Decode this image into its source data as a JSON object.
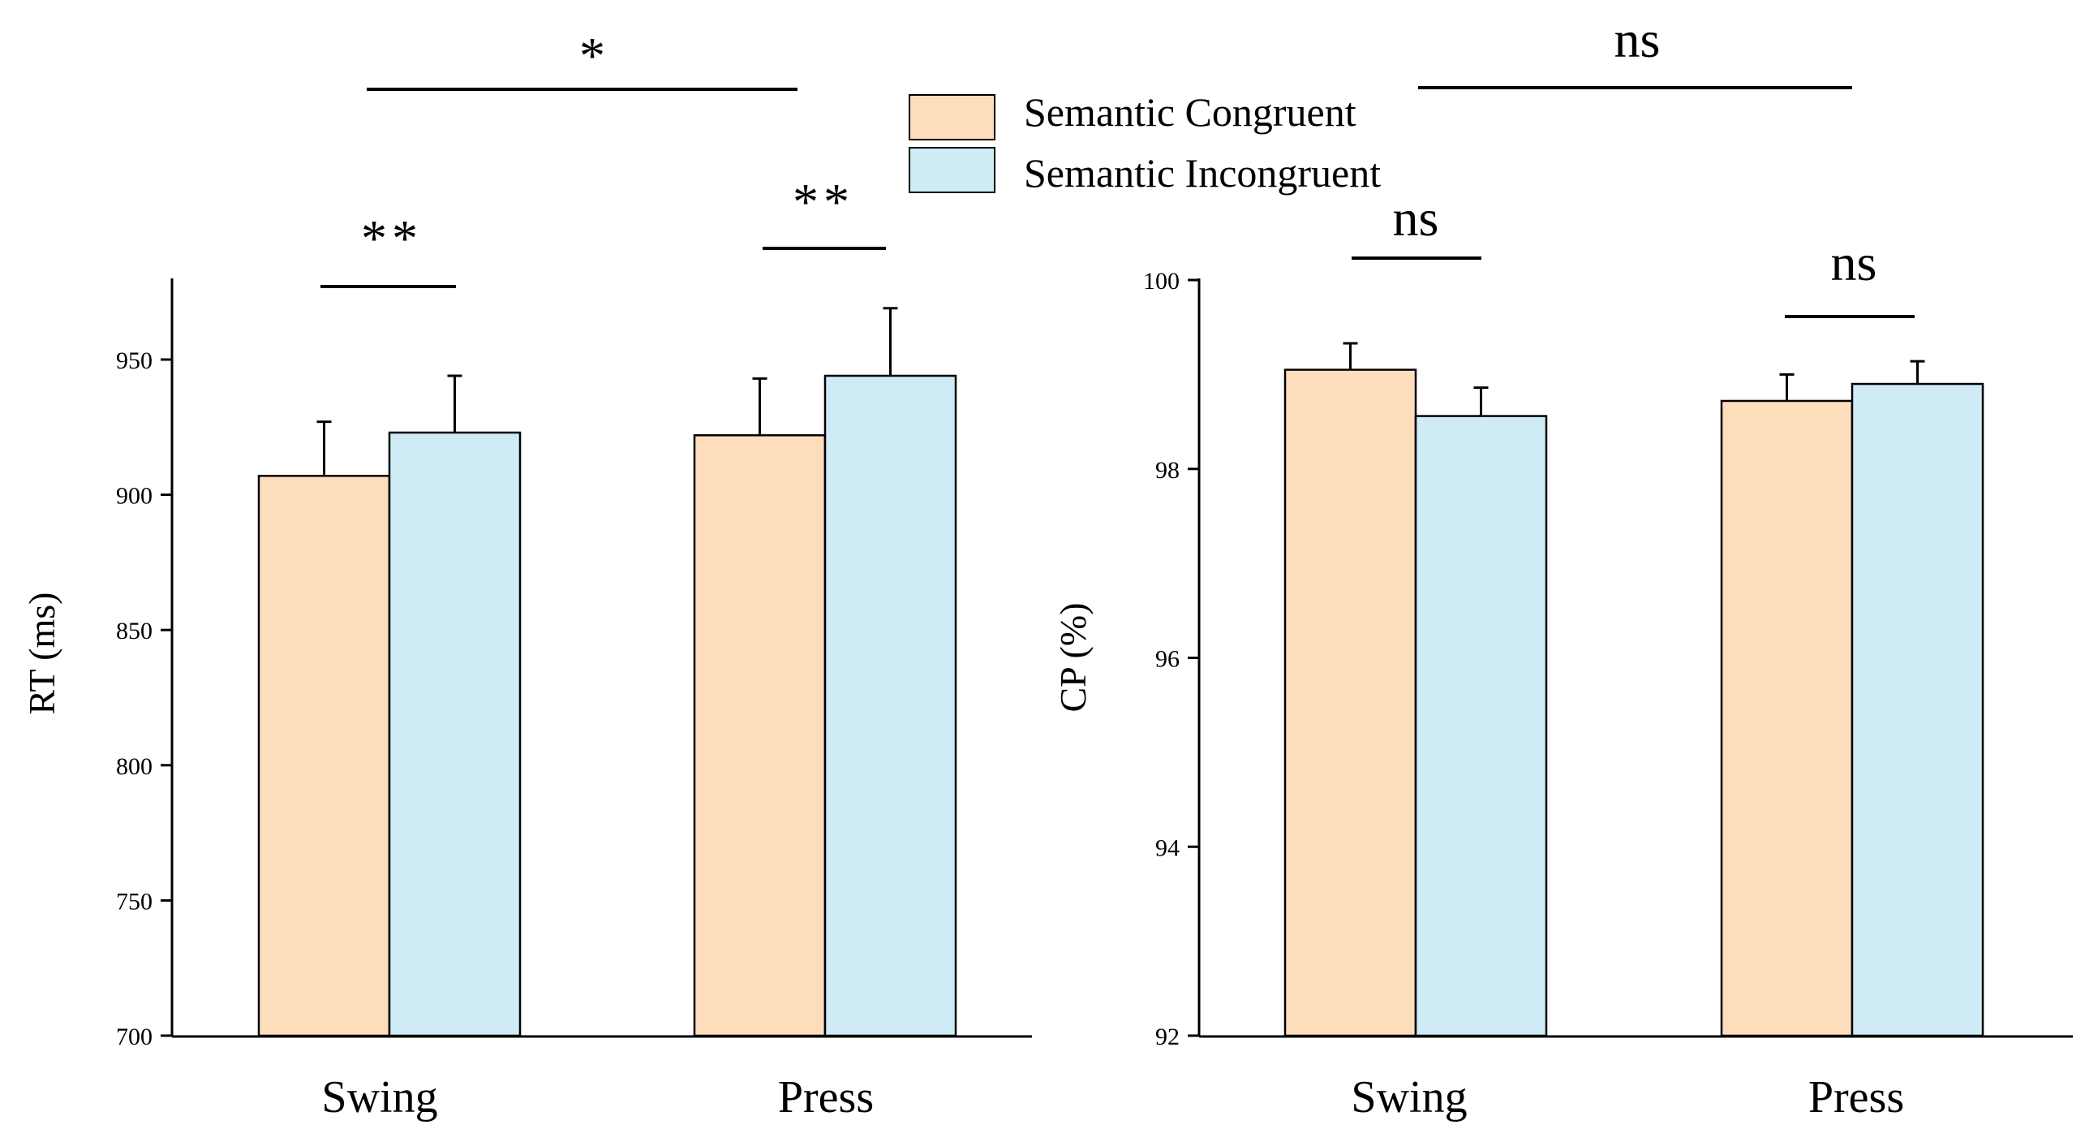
{
  "legend": {
    "entries": [
      {
        "label": "Semantic Congruent",
        "color": "#FDDDBC"
      },
      {
        "label": "Semantic Incongruent",
        "color": "#CFECF6"
      }
    ]
  },
  "colors": {
    "congruent": "#FDDDBC",
    "incongruent": "#CFECF6",
    "stroke": "#000000"
  },
  "chart_data": [
    {
      "type": "bar",
      "name": "rt-chart",
      "categories": [
        "Swing",
        "Press"
      ],
      "ylabel": "RT (ms)",
      "xlabel": "",
      "ylim": [
        700,
        980
      ],
      "yticks": [
        700,
        750,
        800,
        850,
        900,
        950
      ],
      "series": [
        {
          "name": "Semantic Congruent",
          "values": [
            907,
            922
          ],
          "errors": [
            20,
            21
          ]
        },
        {
          "name": "Semantic Incongruent",
          "values": [
            923,
            944
          ],
          "errors": [
            21,
            25
          ]
        }
      ],
      "significance": {
        "within": [
          "**",
          "**"
        ],
        "between": "*"
      }
    },
    {
      "type": "bar",
      "name": "cp-chart",
      "categories": [
        "Swing",
        "Press"
      ],
      "ylabel": "CP (%)",
      "xlabel": "",
      "ylim": [
        92,
        100
      ],
      "yticks": [
        92,
        94,
        96,
        98,
        100
      ],
      "series": [
        {
          "name": "Semantic Congruent",
          "values": [
            99.05,
            98.72
          ],
          "errors": [
            0.28,
            0.28
          ]
        },
        {
          "name": "Semantic Incongruent",
          "values": [
            98.56,
            98.9
          ],
          "errors": [
            0.3,
            0.24
          ]
        }
      ],
      "significance": {
        "within": [
          "ns",
          "ns"
        ],
        "between": "ns"
      }
    }
  ]
}
